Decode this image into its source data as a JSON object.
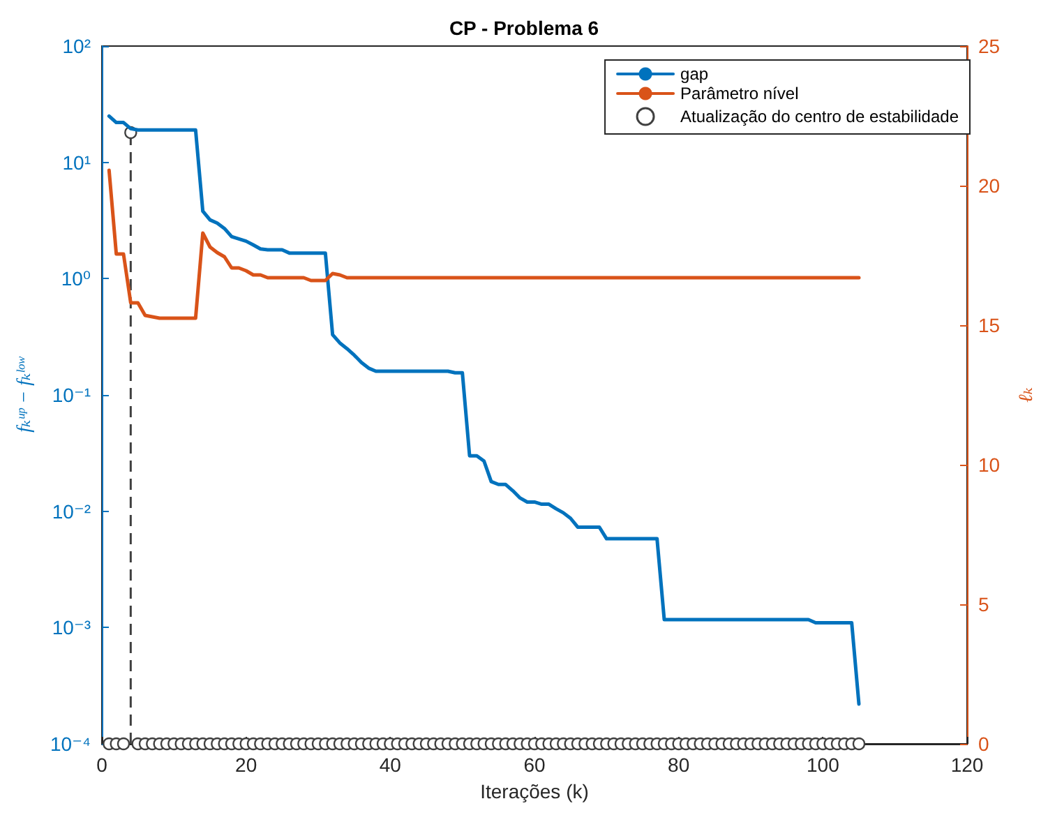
{
  "chart_data": {
    "type": "line",
    "title": "CP - Problema 6",
    "xlabel": "Iterações (k)",
    "ylabel": "fₖᵘᵖ − fₖˡᵒʷ",
    "y2label": "ℓₖ",
    "xlim": [
      0,
      120
    ],
    "xticks": [
      0,
      20,
      40,
      60,
      80,
      100,
      120
    ],
    "ylim": [
      0.0001,
      100
    ],
    "yticks": [
      {
        "value": 0.0001,
        "label": "10⁻⁴"
      },
      {
        "value": 0.001,
        "label": "10⁻³"
      },
      {
        "value": 0.01,
        "label": "10⁻²"
      },
      {
        "value": 0.1,
        "label": "10⁻¹"
      },
      {
        "value": 1,
        "label": "10⁰"
      },
      {
        "value": 10,
        "label": "10¹"
      },
      {
        "value": 100,
        "label": "10²"
      }
    ],
    "log": "y",
    "y2lim": [
      0,
      25
    ],
    "y2ticks": [
      0,
      5,
      10,
      15,
      20,
      25
    ],
    "grid": false,
    "legend": "top right",
    "series": [
      {
        "name": "gap",
        "color": "#0072bd",
        "marker": "none",
        "line_style": "solid",
        "x": [
          1,
          2,
          3,
          4,
          5,
          6,
          7,
          8,
          9,
          10,
          11,
          12,
          13,
          14,
          15,
          16,
          17,
          18,
          19,
          20,
          21,
          22,
          23,
          24,
          25,
          26,
          27,
          28,
          29,
          30,
          31,
          32,
          33,
          34,
          35,
          36,
          37,
          38,
          39,
          40,
          41,
          42,
          43,
          44,
          45,
          46,
          47,
          48,
          49,
          50,
          51,
          52,
          53,
          54,
          55,
          56,
          57,
          58,
          59,
          60,
          61,
          62,
          63,
          64,
          65,
          66,
          67,
          68,
          69,
          70,
          71,
          72,
          73,
          74,
          75,
          76,
          77,
          78,
          79,
          80,
          81,
          82,
          83,
          84,
          85,
          86,
          87,
          88,
          89,
          90,
          91,
          92,
          93,
          94,
          95,
          96,
          97,
          98,
          99,
          100,
          101,
          102,
          103,
          104,
          105
        ],
        "values": [
          25,
          22,
          22,
          19.5,
          19,
          19,
          19,
          19,
          19,
          19,
          19,
          19,
          19,
          3.8,
          3.2,
          3,
          2.7,
          2.3,
          2.2,
          2.1,
          1.95,
          1.8,
          1.77,
          1.77,
          1.77,
          1.66,
          1.66,
          1.66,
          1.66,
          1.66,
          1.66,
          0.33,
          0.28,
          0.25,
          0.22,
          0.19,
          0.17,
          0.16,
          0.16,
          0.16,
          0.16,
          0.16,
          0.16,
          0.16,
          0.16,
          0.16,
          0.16,
          0.16,
          0.155,
          0.155,
          0.03,
          0.03,
          0.027,
          0.018,
          0.017,
          0.017,
          0.015,
          0.013,
          0.012,
          0.012,
          0.0115,
          0.0115,
          0.0105,
          0.0097,
          0.0087,
          0.0073,
          0.0073,
          0.0073,
          0.0073,
          0.0058,
          0.0058,
          0.0058,
          0.0058,
          0.0058,
          0.0058,
          0.0058,
          0.0058,
          0.00117,
          0.00117,
          0.00117,
          0.00117,
          0.00117,
          0.00117,
          0.00117,
          0.00117,
          0.00117,
          0.00117,
          0.00117,
          0.00117,
          0.00117,
          0.00117,
          0.00117,
          0.00117,
          0.00117,
          0.00117,
          0.00117,
          0.00117,
          0.00117,
          0.0011,
          0.0011,
          0.0011,
          0.0011,
          0.0011,
          0.0011,
          0.00022
        ]
      },
      {
        "name": "Parâmetro nível",
        "axis": "y2",
        "color": "#d95319",
        "marker": "none",
        "line_style": "solid",
        "x": [
          1,
          2,
          3,
          4,
          5,
          6,
          7,
          8,
          13,
          14,
          15,
          16,
          17,
          18,
          19,
          20,
          21,
          22,
          23,
          28,
          29,
          31,
          32,
          33,
          34,
          105
        ],
        "values": [
          20.55,
          17.55,
          17.55,
          15.8,
          15.8,
          15.35,
          15.3,
          15.25,
          15.25,
          18.3,
          17.8,
          17.6,
          17.45,
          17.05,
          17.05,
          16.95,
          16.8,
          16.8,
          16.7,
          16.7,
          16.6,
          16.6,
          16.85,
          16.8,
          16.7,
          16.7
        ]
      },
      {
        "name": "Atualização do centro de estabilidade",
        "type": "lollipop",
        "axis": "y2",
        "color": "#404040",
        "marker": "circle",
        "line_style": "dashed",
        "x": [
          1,
          2,
          3,
          4,
          5,
          6,
          7,
          8,
          9,
          10,
          11,
          12,
          13,
          14,
          15,
          16,
          17,
          18,
          19,
          20,
          21,
          22,
          23,
          24,
          25,
          26,
          27,
          28,
          29,
          30,
          31,
          32,
          33,
          34,
          35,
          36,
          37,
          38,
          39,
          40,
          41,
          42,
          43,
          44,
          45,
          46,
          47,
          48,
          49,
          50,
          51,
          52,
          53,
          54,
          55,
          56,
          57,
          58,
          59,
          60,
          61,
          62,
          63,
          64,
          65,
          66,
          67,
          68,
          69,
          70,
          71,
          72,
          73,
          74,
          75,
          76,
          77,
          78,
          79,
          80,
          81,
          82,
          83,
          84,
          85,
          86,
          87,
          88,
          89,
          90,
          91,
          92,
          93,
          94,
          95,
          96,
          97,
          98,
          99,
          100,
          101,
          102,
          103,
          104,
          105
        ],
        "values": [
          0,
          0,
          0,
          21.9,
          0,
          0,
          0,
          0,
          0,
          0,
          0,
          0,
          0,
          0,
          0,
          0,
          0,
          0,
          0,
          0,
          0,
          0,
          0,
          0,
          0,
          0,
          0,
          0,
          0,
          0,
          0,
          0,
          0,
          0,
          0,
          0,
          0,
          0,
          0,
          0,
          0,
          0,
          0,
          0,
          0,
          0,
          0,
          0,
          0,
          0,
          0,
          0,
          0,
          0,
          0,
          0,
          0,
          0,
          0,
          0,
          0,
          0,
          0,
          0,
          0,
          0,
          0,
          0,
          0,
          0,
          0,
          0,
          0,
          0,
          0,
          0,
          0,
          0,
          0,
          0,
          0,
          0,
          0,
          0,
          0,
          0,
          0,
          0,
          0,
          0,
          0,
          0,
          0,
          0,
          0,
          0,
          0,
          0,
          0,
          0,
          0,
          0,
          0,
          0,
          0
        ]
      }
    ]
  }
}
